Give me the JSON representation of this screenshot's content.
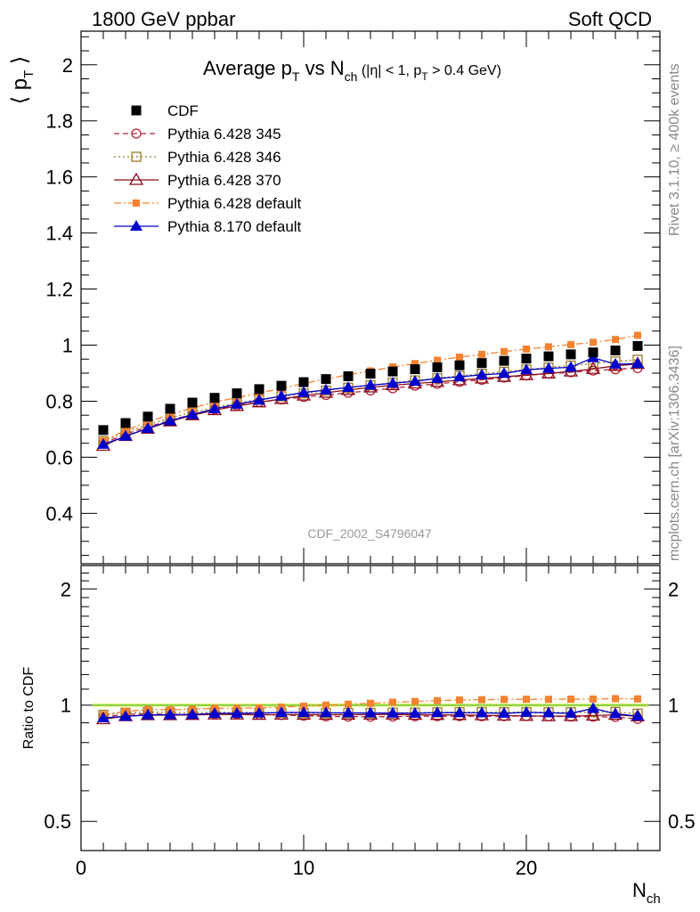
{
  "header": {
    "left": "1800 GeV ppbar",
    "right": "Soft QCD"
  },
  "side_labels": {
    "rivet": "Rivet 3.1.10, ≥ 400k events",
    "mcplots": "mcplots.cern.ch [arXiv:1306.3436]"
  },
  "plot_title": {
    "main": "Average p",
    "main_sub": "T",
    "vs": " vs N",
    "vs_sub": "ch",
    "cut_open": " (|η| < 1, p",
    "cut_sub": "T",
    "cut_close": " > 0.4 GeV)"
  },
  "analysis_id": "CDF_2002_S4796047",
  "axes": {
    "ylabel_main": "⟨ p",
    "ylabel_sub": "T",
    "ylabel_close": " ⟩",
    "ylabel_ratio": "Ratio to CDF",
    "xlabel": "N",
    "xlabel_sub": "ch"
  },
  "chart_data": {
    "type": "scatter",
    "xlim": [
      0,
      26
    ],
    "ylim_main": [
      0.22,
      2.12
    ],
    "ylim_ratio": [
      0.42,
      2.3
    ],
    "ratio_log_scale": true,
    "x_ticks": [
      0,
      10,
      20
    ],
    "y_ticks_main": [
      0.4,
      0.6,
      0.8,
      1,
      1.2,
      1.4,
      1.6,
      1.8,
      2
    ],
    "y_ticks_ratio": [
      0.5,
      1,
      2
    ],
    "x": [
      1,
      2,
      3,
      4,
      5,
      6,
      7,
      8,
      9,
      10,
      11,
      12,
      13,
      14,
      15,
      16,
      17,
      18,
      19,
      20,
      21,
      22,
      23,
      24,
      25
    ],
    "series": [
      {
        "name": "CDF",
        "color": "#000000",
        "marker": "filled-square",
        "line": "none",
        "values": [
          0.697,
          0.722,
          0.745,
          0.773,
          0.795,
          0.812,
          0.828,
          0.843,
          0.855,
          0.868,
          0.879,
          0.889,
          0.898,
          0.906,
          0.914,
          0.921,
          0.928,
          0.936,
          0.944,
          0.952,
          0.96,
          0.967,
          0.974,
          0.981,
          0.997
        ]
      },
      {
        "name": "Pythia 6.428 345",
        "color": "#b22234",
        "marker": "open-circle",
        "line": "dashed",
        "values": [
          0.65,
          0.683,
          0.708,
          0.732,
          0.752,
          0.77,
          0.785,
          0.797,
          0.806,
          0.815,
          0.822,
          0.83,
          0.838,
          0.846,
          0.855,
          0.862,
          0.869,
          0.876,
          0.884,
          0.892,
          0.898,
          0.903,
          0.909,
          0.914,
          0.918
        ]
      },
      {
        "name": "Pythia 6.428 346",
        "color": "#9a7a2a",
        "marker": "open-square",
        "line": "dotted",
        "values": [
          0.658,
          0.69,
          0.715,
          0.74,
          0.76,
          0.778,
          0.793,
          0.806,
          0.817,
          0.828,
          0.838,
          0.848,
          0.857,
          0.866,
          0.874,
          0.882,
          0.89,
          0.898,
          0.905,
          0.913,
          0.92,
          0.927,
          0.934,
          0.942,
          0.948
        ]
      },
      {
        "name": "Pythia 6.428 370",
        "color": "#8b0a1a",
        "marker": "open-triangle",
        "line": "solid",
        "values": [
          0.641,
          0.676,
          0.702,
          0.728,
          0.75,
          0.768,
          0.783,
          0.796,
          0.808,
          0.82,
          0.83,
          0.84,
          0.849,
          0.857,
          0.863,
          0.869,
          0.875,
          0.881,
          0.887,
          0.893,
          0.899,
          0.906,
          0.915,
          0.926,
          0.933
        ]
      },
      {
        "name": "Pythia 6.428 default",
        "color": "#f58231",
        "marker": "filled-square-small",
        "line": "dashdot",
        "values": [
          0.658,
          0.696,
          0.726,
          0.752,
          0.776,
          0.797,
          0.813,
          0.829,
          0.845,
          0.863,
          0.879,
          0.894,
          0.908,
          0.922,
          0.934,
          0.946,
          0.957,
          0.967,
          0.977,
          0.986,
          0.994,
          1.002,
          1.01,
          1.02,
          1.035
        ]
      },
      {
        "name": "Pythia 8.170 default",
        "color": "#0000cc",
        "marker": "filled-triangle",
        "line": "solid",
        "values": [
          0.646,
          0.675,
          0.703,
          0.73,
          0.752,
          0.773,
          0.789,
          0.804,
          0.818,
          0.831,
          0.84,
          0.849,
          0.857,
          0.864,
          0.871,
          0.881,
          0.887,
          0.894,
          0.899,
          0.912,
          0.917,
          0.921,
          0.955,
          0.932,
          0.934
        ]
      }
    ],
    "legend_placement": "top-left"
  }
}
